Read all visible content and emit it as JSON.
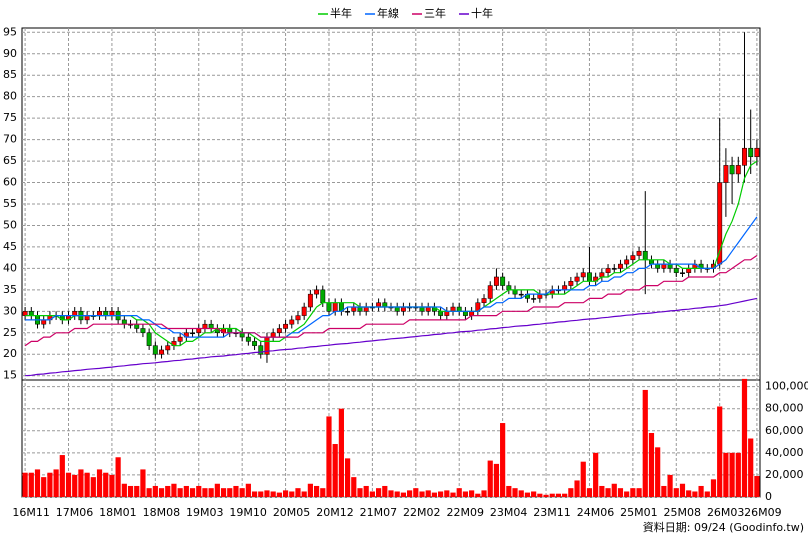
{
  "chart_data": [
    {
      "type": "candlestick",
      "footer": "資料日期: 09/24 (Goodinfo.tw)",
      "categories": [
        "16M11",
        null,
        null,
        null,
        null,
        null,
        null,
        "17M06",
        null,
        null,
        null,
        null,
        null,
        null,
        "18M01",
        null,
        null,
        null,
        null,
        null,
        null,
        "18M08",
        null,
        null,
        null,
        null,
        null,
        null,
        "19M03",
        null,
        null,
        null,
        null,
        null,
        null,
        "19M10",
        null,
        null,
        null,
        null,
        null,
        null,
        "20M05",
        null,
        null,
        null,
        null,
        null,
        null,
        "20M12",
        null,
        null,
        null,
        null,
        null,
        null,
        "21M07",
        null,
        null,
        null,
        null,
        null,
        null,
        "22M02",
        null,
        null,
        null,
        null,
        null,
        null,
        "22M09",
        null,
        null,
        null,
        null,
        null,
        null,
        "23M04",
        null,
        null,
        null,
        null,
        null,
        null,
        "23M11",
        null,
        null,
        null,
        null,
        null,
        null,
        "24M06",
        null,
        null,
        null,
        null,
        null,
        null,
        "25M01",
        null,
        null,
        null,
        null,
        null,
        null,
        "25M08",
        null,
        null,
        null,
        null,
        null,
        null,
        "26M03",
        null,
        null,
        null,
        null,
        null,
        "26M09"
      ],
      "open": [
        29,
        30,
        29,
        27,
        28,
        29,
        29,
        28,
        29,
        30,
        28,
        29,
        29,
        30,
        29,
        30,
        28,
        27,
        27,
        26,
        25,
        22,
        20,
        21,
        22,
        23,
        24,
        25,
        25,
        26,
        27,
        26,
        25,
        26,
        25,
        25,
        24,
        23,
        22,
        20,
        24,
        25,
        26,
        27,
        28,
        29,
        31,
        34,
        35,
        32,
        30,
        32,
        30,
        30,
        31,
        30,
        31,
        31,
        32,
        31,
        31,
        30,
        31,
        31,
        31,
        30,
        31,
        30,
        29,
        30,
        31,
        30,
        29,
        30,
        32,
        33,
        36,
        38,
        36,
        35,
        34,
        34,
        33,
        33,
        34,
        34,
        35,
        35,
        36,
        37,
        38,
        39,
        37,
        38,
        39,
        40,
        40,
        41,
        42,
        43,
        44,
        42,
        41,
        40,
        41,
        40,
        39,
        39,
        40,
        41,
        40,
        40,
        41,
        60,
        64,
        62,
        64,
        68,
        66
      ],
      "high": [
        31,
        31,
        30,
        29,
        30,
        30,
        30,
        30,
        31,
        31,
        30,
        30,
        31,
        31,
        31,
        31,
        29,
        28,
        28,
        27,
        26,
        23,
        22,
        23,
        24,
        25,
        26,
        26,
        27,
        28,
        28,
        27,
        27,
        27,
        26,
        26,
        25,
        24,
        23,
        25,
        26,
        27,
        28,
        29,
        30,
        32,
        35,
        36,
        36,
        33,
        33,
        33,
        31,
        32,
        32,
        32,
        32,
        33,
        33,
        32,
        32,
        32,
        32,
        32,
        32,
        32,
        32,
        31,
        31,
        32,
        32,
        31,
        31,
        33,
        34,
        37,
        40,
        39,
        37,
        36,
        35,
        35,
        34,
        35,
        35,
        36,
        36,
        37,
        38,
        39,
        40,
        45,
        39,
        40,
        41,
        41,
        42,
        43,
        44,
        45,
        58,
        43,
        42,
        42,
        42,
        41,
        40,
        41,
        42,
        42,
        41,
        42,
        75,
        68,
        66,
        66,
        95,
        77,
        70
      ],
      "low": [
        28,
        28,
        26,
        26,
        27,
        28,
        27,
        27,
        28,
        27,
        27,
        28,
        28,
        28,
        28,
        27,
        26,
        26,
        25,
        24,
        21,
        19,
        19,
        20,
        21,
        22,
        23,
        24,
        24,
        25,
        25,
        24,
        24,
        24,
        24,
        23,
        22,
        21,
        19,
        18,
        23,
        24,
        25,
        26,
        27,
        28,
        30,
        33,
        31,
        29,
        29,
        29,
        29,
        29,
        29,
        29,
        30,
        30,
        30,
        30,
        29,
        29,
        30,
        30,
        29,
        29,
        29,
        28,
        28,
        29,
        29,
        28,
        28,
        29,
        31,
        32,
        35,
        35,
        34,
        33,
        33,
        32,
        32,
        32,
        33,
        33,
        34,
        34,
        35,
        36,
        37,
        36,
        36,
        37,
        38,
        39,
        39,
        40,
        41,
        42,
        34,
        40,
        39,
        39,
        39,
        38,
        38,
        38,
        39,
        39,
        39,
        39,
        40,
        52,
        55,
        60,
        60,
        62,
        64
      ],
      "close": [
        30,
        29,
        27,
        28,
        29,
        29,
        28,
        29,
        30,
        28,
        29,
        29,
        30,
        29,
        30,
        28,
        27,
        27,
        26,
        25,
        22,
        20,
        21,
        22,
        23,
        24,
        25,
        25,
        26,
        27,
        26,
        25,
        26,
        25,
        25,
        24,
        23,
        22,
        20,
        24,
        25,
        26,
        27,
        28,
        29,
        31,
        34,
        35,
        32,
        30,
        32,
        30,
        30,
        31,
        30,
        31,
        31,
        32,
        31,
        31,
        30,
        31,
        31,
        31,
        30,
        31,
        30,
        29,
        30,
        31,
        30,
        29,
        30,
        32,
        33,
        36,
        38,
        36,
        35,
        34,
        34,
        33,
        33,
        34,
        34,
        35,
        35,
        36,
        37,
        38,
        39,
        37,
        38,
        39,
        40,
        40,
        41,
        42,
        43,
        44,
        42,
        41,
        40,
        41,
        40,
        39,
        39,
        40,
        41,
        40,
        40,
        41,
        60,
        64,
        62,
        64,
        68,
        66,
        68
      ],
      "up_color": "#ff0000",
      "down_color": "#00aa00",
      "series": [
        {
          "name": "半年",
          "color": "#00cc00",
          "values": [
            29,
            29,
            29,
            29,
            29,
            29,
            28,
            28,
            29,
            29,
            29,
            29,
            29,
            29,
            29,
            29,
            29,
            29,
            28,
            28,
            27,
            25,
            24,
            23,
            22,
            22,
            23,
            23,
            24,
            25,
            25,
            26,
            26,
            26,
            26,
            25,
            25,
            24,
            23,
            23,
            23,
            23,
            24,
            25,
            26,
            27,
            29,
            31,
            32,
            32,
            32,
            32,
            32,
            32,
            31,
            31,
            31,
            31,
            31,
            31,
            31,
            31,
            31,
            31,
            31,
            31,
            31,
            30,
            30,
            30,
            30,
            30,
            30,
            30,
            31,
            32,
            33,
            34,
            35,
            35,
            35,
            35,
            35,
            34,
            34,
            34,
            34,
            34,
            35,
            36,
            37,
            37,
            37,
            38,
            38,
            39,
            39,
            40,
            41,
            42,
            42,
            42,
            42,
            42,
            41,
            41,
            40,
            40,
            40,
            40,
            40,
            40,
            44,
            48,
            51,
            55,
            61,
            64,
            65
          ]
        },
        {
          "name": "年線",
          "color": "#0066ff",
          "values": [
            28,
            28,
            28,
            28,
            28,
            29,
            29,
            29,
            29,
            29,
            29,
            29,
            29,
            29,
            29,
            29,
            29,
            29,
            29,
            28,
            28,
            27,
            26,
            26,
            25,
            25,
            24,
            24,
            24,
            24,
            24,
            24,
            24,
            25,
            25,
            25,
            25,
            25,
            24,
            24,
            24,
            24,
            24,
            25,
            25,
            26,
            27,
            28,
            29,
            29,
            30,
            30,
            31,
            31,
            31,
            31,
            31,
            31,
            31,
            31,
            31,
            31,
            31,
            31,
            31,
            31,
            31,
            31,
            30,
            30,
            30,
            30,
            30,
            30,
            31,
            31,
            32,
            32,
            33,
            33,
            33,
            34,
            34,
            34,
            34,
            35,
            35,
            35,
            35,
            35,
            35,
            36,
            36,
            37,
            37,
            38,
            38,
            39,
            39,
            40,
            40,
            41,
            41,
            41,
            41,
            41,
            41,
            41,
            41,
            40,
            40,
            40,
            41,
            42,
            44,
            46,
            48,
            50,
            52
          ]
        },
        {
          "name": "三年",
          "color": "#cc0066",
          "values": [
            22,
            23,
            23,
            24,
            24,
            25,
            25,
            25,
            26,
            26,
            26,
            27,
            27,
            27,
            27,
            27,
            27,
            27,
            27,
            27,
            27,
            27,
            27,
            26,
            26,
            26,
            26,
            26,
            26,
            26,
            26,
            26,
            25,
            25,
            25,
            25,
            25,
            25,
            24,
            24,
            24,
            24,
            24,
            24,
            24,
            25,
            25,
            25,
            25,
            26,
            26,
            26,
            26,
            26,
            26,
            27,
            27,
            27,
            27,
            27,
            27,
            27,
            28,
            28,
            28,
            28,
            28,
            28,
            28,
            28,
            28,
            28,
            29,
            29,
            29,
            29,
            29,
            30,
            30,
            30,
            30,
            30,
            31,
            31,
            31,
            31,
            31,
            32,
            32,
            32,
            32,
            33,
            33,
            33,
            34,
            34,
            34,
            35,
            35,
            35,
            36,
            36,
            36,
            37,
            37,
            37,
            37,
            38,
            38,
            38,
            38,
            38,
            39,
            39,
            40,
            41,
            42,
            42,
            43
          ]
        },
        {
          "name": "十年",
          "color": "#6600cc",
          "values": [
            15.0,
            15.1,
            15.3,
            15.4,
            15.6,
            15.7,
            15.9,
            16.0,
            16.2,
            16.3,
            16.5,
            16.6,
            16.7,
            16.9,
            17.0,
            17.2,
            17.3,
            17.5,
            17.6,
            17.8,
            17.9,
            18.0,
            18.2,
            18.3,
            18.5,
            18.6,
            18.8,
            18.9,
            19.1,
            19.2,
            19.4,
            19.5,
            19.6,
            19.8,
            19.9,
            20.1,
            20.2,
            20.4,
            20.5,
            20.7,
            20.8,
            21.0,
            21.1,
            21.2,
            21.4,
            21.5,
            21.7,
            21.8,
            22.0,
            22.1,
            22.3,
            22.4,
            22.5,
            22.7,
            22.8,
            23.0,
            23.1,
            23.3,
            23.4,
            23.6,
            23.7,
            23.8,
            24.0,
            24.1,
            24.3,
            24.4,
            24.6,
            24.7,
            24.9,
            25.0,
            25.2,
            25.3,
            25.4,
            25.6,
            25.7,
            25.9,
            26.0,
            26.2,
            26.3,
            26.5,
            26.6,
            26.7,
            26.9,
            27.0,
            27.2,
            27.3,
            27.5,
            27.6,
            27.8,
            27.9,
            28.1,
            28.2,
            28.3,
            28.5,
            28.6,
            28.8,
            28.9,
            29.1,
            29.2,
            29.4,
            29.5,
            29.6,
            29.8,
            29.9,
            30.1,
            30.2,
            30.4,
            30.5,
            30.7,
            30.8,
            31.0,
            31.1,
            31.3,
            31.5,
            31.8,
            32.1,
            32.4,
            32.7,
            33.0
          ]
        }
      ],
      "ylim": [
        14,
        96
      ],
      "yticks": [
        15,
        20,
        25,
        30,
        35,
        40,
        45,
        50,
        55,
        60,
        65,
        70,
        75,
        80,
        85,
        90,
        95
      ],
      "grid": true
    },
    {
      "type": "bar",
      "color": "#ff0000",
      "values": [
        22000,
        22000,
        25000,
        18000,
        22000,
        25000,
        38000,
        22000,
        20000,
        25000,
        22000,
        18000,
        25000,
        22000,
        20000,
        36000,
        12000,
        10000,
        10000,
        25000,
        8000,
        10000,
        8000,
        10000,
        12000,
        8000,
        10000,
        8000,
        10000,
        8000,
        8000,
        12000,
        8000,
        8000,
        10000,
        8000,
        12000,
        5000,
        5000,
        6000,
        5000,
        4000,
        6000,
        5000,
        8000,
        5000,
        12000,
        10000,
        8000,
        73000,
        48000,
        80000,
        35000,
        18000,
        8000,
        10000,
        5000,
        8000,
        10000,
        6000,
        5000,
        4000,
        6000,
        8000,
        5000,
        6000,
        4000,
        5000,
        6000,
        4000,
        8000,
        5000,
        6000,
        3000,
        6000,
        33000,
        30000,
        67000,
        10000,
        8000,
        6000,
        4000,
        5000,
        3000,
        2000,
        3000,
        3000,
        3000,
        8000,
        15000,
        32000,
        8000,
        40000,
        10000,
        8000,
        12000,
        8000,
        5000,
        8000,
        8000,
        97000,
        58000,
        45000,
        10000,
        20000,
        8000,
        12000,
        6000,
        5000,
        10000,
        5000,
        16000,
        82000,
        40000,
        40000,
        40000,
        107000,
        53000,
        19000
      ],
      "ylim": [
        0,
        106000
      ],
      "yticks": [
        0,
        {
          "value": 20000,
          "label": "20,000"
        },
        {
          "value": 40000,
          "label": "40,000"
        },
        {
          "value": 60000,
          "label": "60,000"
        },
        {
          "value": 80000,
          "label": "80,000"
        },
        {
          "value": 100000,
          "label": "100,000"
        }
      ],
      "grid": true
    }
  ]
}
